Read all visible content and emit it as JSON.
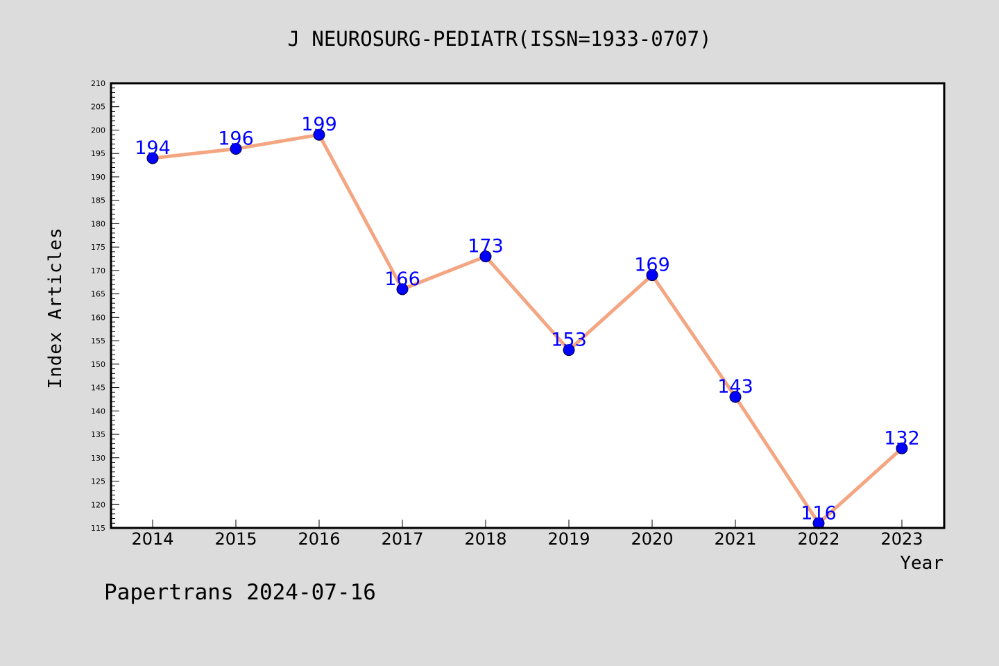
{
  "colors": {
    "page_background": "#dcdcdc",
    "plot_background": "#ffffff",
    "axis": "#000000",
    "line": "#f4a582",
    "marker": "#0000ff",
    "data_label": "#0000ff",
    "text": "#000000"
  },
  "footer": {
    "credit": "Papertrans 2024-07-16"
  },
  "chart_data": {
    "type": "line",
    "title": "J NEUROSURG-PEDIATR(ISSN=1933-0707)",
    "xlabel": "Year",
    "ylabel": "Index Articles",
    "categories": [
      "2014",
      "2015",
      "2016",
      "2017",
      "2018",
      "2019",
      "2020",
      "2021",
      "2022",
      "2023"
    ],
    "series": [
      {
        "values": [
          194,
          196,
          199,
          166,
          173,
          153,
          169,
          143,
          116,
          132
        ],
        "marker": "circle",
        "data_labels": true
      }
    ],
    "ylim": [
      115,
      210
    ],
    "y_major_step": 5,
    "y_minor_step": 1,
    "grid": false,
    "legend": "none"
  }
}
